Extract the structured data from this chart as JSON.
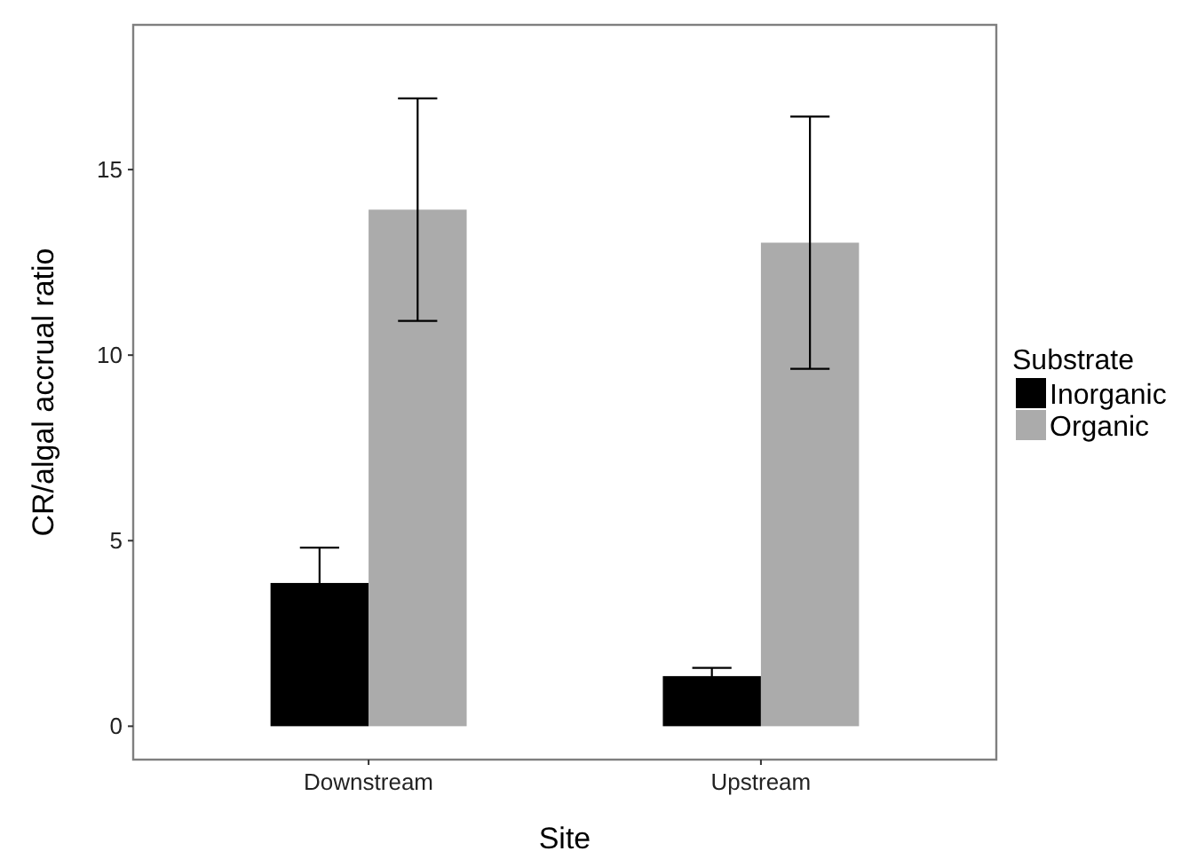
{
  "chart_data": {
    "type": "bar",
    "xlabel": "Site",
    "ylabel": "CR/algal accrual ratio",
    "legend_title": "Substrate",
    "categories": [
      "Downstream",
      "Upstream"
    ],
    "series": [
      {
        "name": "Inorganic",
        "color": "#000000",
        "values": [
          3.86,
          1.35
        ],
        "errors": [
          0.95,
          0.22
        ]
      },
      {
        "name": "Organic",
        "color": "#ababab",
        "values": [
          13.92,
          13.03
        ],
        "errors": [
          3.0,
          3.4
        ]
      }
    ],
    "ylim": [
      -0.9,
      18.9
    ],
    "yticks": [
      0,
      5,
      10,
      15
    ],
    "grid": false,
    "legend": "right"
  }
}
